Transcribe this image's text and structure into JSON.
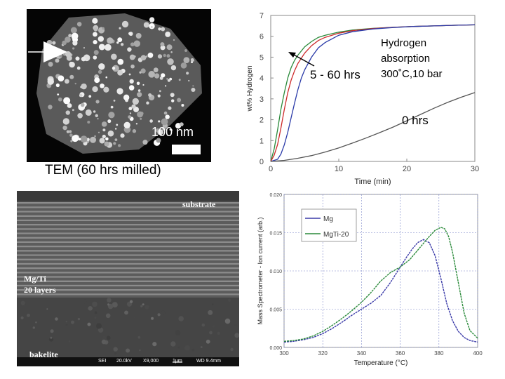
{
  "tem": {
    "scale_label": "100 nm",
    "caption": "TEM (60 hrs milled)"
  },
  "sem": {
    "label_substrate": "substrate",
    "label_layers_line1": "Mg/Ti",
    "label_layers_line2": "20 layers",
    "label_bakelite": "bakelite",
    "info_detector": "SEI",
    "info_voltage": "20.0kV",
    "info_mag": "X9,000",
    "info_scale": "1μm",
    "info_wd": "WD 9.4mm"
  },
  "chart_data": [
    {
      "type": "line",
      "xlabel": "Time (min)",
      "ylabel": "wt% Hydrogen",
      "xlim": [
        0,
        30
      ],
      "ylim": [
        0,
        7
      ],
      "xticks": [
        0,
        10,
        20,
        30
      ],
      "yticks": [
        0,
        1,
        2,
        3,
        4,
        5,
        6,
        7
      ],
      "grid": false,
      "annotations": [
        "Hydrogen",
        "absorption",
        "300˚C,10 bar",
        "5 - 60 hrs",
        "0 hrs"
      ],
      "series": [
        {
          "color": "#2a8a3a",
          "x": [
            0,
            0.5,
            1,
            1.5,
            2,
            2.5,
            3,
            3.5,
            4,
            5,
            6,
            7,
            8,
            10,
            12,
            15,
            18,
            21,
            24,
            27,
            30
          ],
          "y": [
            0,
            0.6,
            1.5,
            2.5,
            3.3,
            4.0,
            4.5,
            4.85,
            5.1,
            5.5,
            5.75,
            5.95,
            6.05,
            6.2,
            6.3,
            6.38,
            6.43,
            6.47,
            6.5,
            6.53,
            6.55
          ]
        },
        {
          "color": "#cc2a2a",
          "x": [
            0,
            0.5,
            1,
            1.5,
            2,
            2.5,
            3,
            3.5,
            4,
            5,
            6,
            7,
            8,
            10,
            12,
            15,
            18,
            21,
            24,
            27,
            30
          ],
          "y": [
            0,
            0.3,
            0.8,
            1.6,
            2.5,
            3.3,
            3.9,
            4.35,
            4.7,
            5.2,
            5.55,
            5.8,
            5.95,
            6.15,
            6.27,
            6.37,
            6.43,
            6.47,
            6.5,
            6.53,
            6.55
          ]
        },
        {
          "color": "#2a3aa8",
          "x": [
            0,
            1,
            1.5,
            2,
            2.5,
            3,
            3.5,
            4,
            4.5,
            5,
            6,
            7,
            8,
            10,
            12,
            15,
            18,
            21,
            24,
            27,
            30
          ],
          "y": [
            0,
            0.1,
            0.35,
            0.8,
            1.4,
            2.1,
            2.8,
            3.45,
            4.0,
            4.4,
            5.0,
            5.45,
            5.7,
            6.05,
            6.22,
            6.35,
            6.42,
            6.47,
            6.5,
            6.53,
            6.55
          ]
        },
        {
          "color": "#555555",
          "x": [
            0,
            2,
            4,
            6,
            8,
            10,
            12,
            14,
            16,
            18,
            20,
            22,
            24,
            26,
            28,
            30
          ],
          "y": [
            0,
            0.05,
            0.15,
            0.28,
            0.45,
            0.65,
            0.88,
            1.12,
            1.38,
            1.65,
            1.95,
            2.25,
            2.55,
            2.83,
            3.08,
            3.3
          ]
        }
      ]
    },
    {
      "type": "line",
      "xlabel": "Temperature (°C)",
      "ylabel": "Mass Spectrometer - Ion current (arb.)",
      "xlim": [
        300,
        400
      ],
      "ylim": [
        0.0,
        0.02
      ],
      "xticks": [
        300,
        320,
        340,
        360,
        380,
        400
      ],
      "yticks": [
        "0.000",
        "0.005",
        "0.010",
        "0.015",
        "0.020"
      ],
      "grid": true,
      "legend_position": "top-left",
      "series": [
        {
          "name": "Mg",
          "color": "#3a3aa8",
          "x": [
            300,
            305,
            310,
            315,
            320,
            325,
            330,
            335,
            340,
            345,
            350,
            355,
            360,
            363,
            366,
            369,
            372,
            375,
            378,
            381,
            384,
            387,
            390,
            393,
            396,
            400
          ],
          "y": [
            0.0007,
            0.0008,
            0.001,
            0.0013,
            0.0018,
            0.0025,
            0.0033,
            0.0042,
            0.005,
            0.0058,
            0.0068,
            0.0085,
            0.0105,
            0.0117,
            0.0128,
            0.0137,
            0.0141,
            0.0137,
            0.012,
            0.009,
            0.0058,
            0.0035,
            0.0021,
            0.0013,
            0.0009,
            0.0007
          ]
        },
        {
          "name": "MgTi-20",
          "color": "#2a8a3a",
          "x": [
            300,
            305,
            310,
            315,
            320,
            325,
            330,
            335,
            340,
            345,
            350,
            355,
            360,
            365,
            370,
            375,
            378,
            381,
            383,
            385,
            387,
            390,
            393,
            396,
            400
          ],
          "y": [
            0.0008,
            0.0009,
            0.0011,
            0.0015,
            0.0021,
            0.0029,
            0.0038,
            0.0048,
            0.0059,
            0.0072,
            0.0087,
            0.0098,
            0.0105,
            0.0115,
            0.013,
            0.0145,
            0.0153,
            0.0157,
            0.0155,
            0.0145,
            0.0125,
            0.0085,
            0.0045,
            0.0022,
            0.0012
          ]
        }
      ]
    }
  ]
}
